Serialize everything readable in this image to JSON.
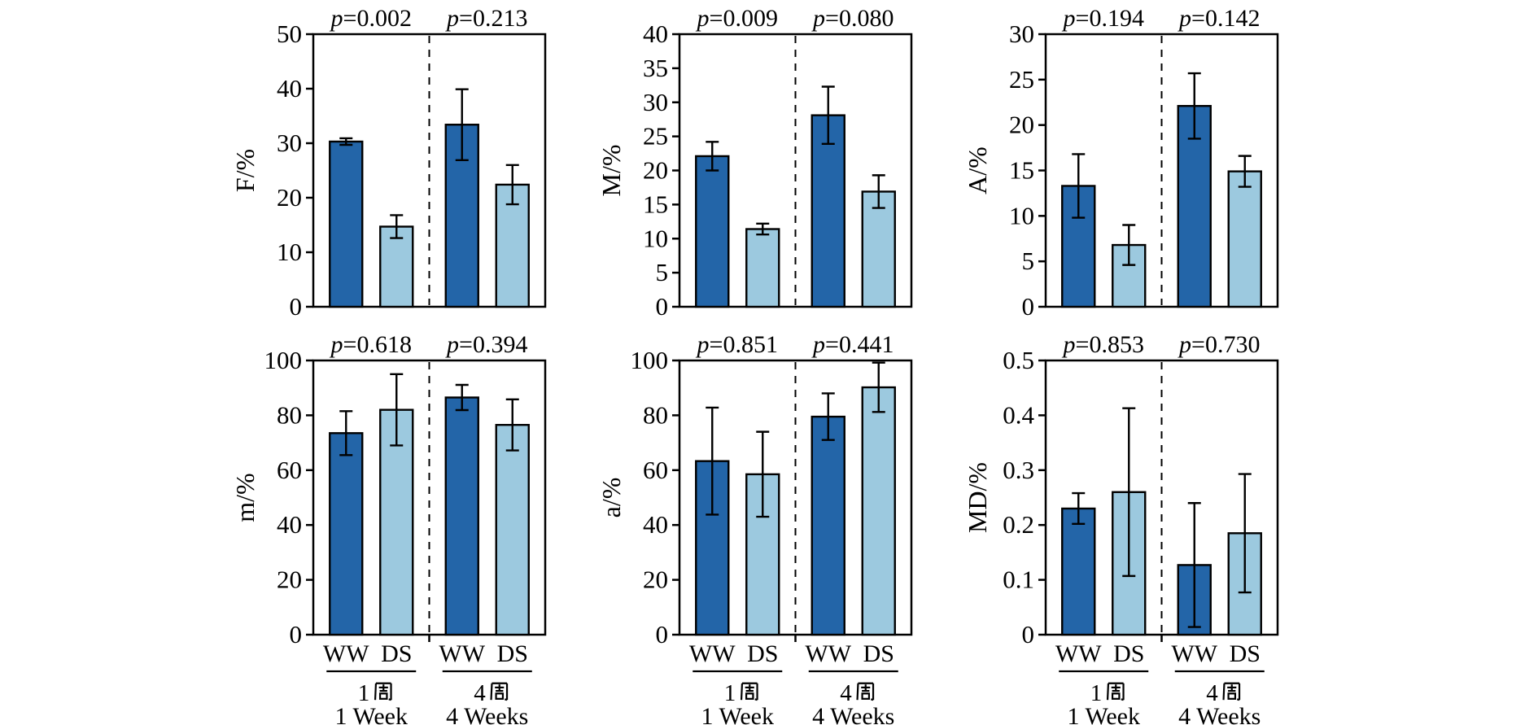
{
  "chart_data": [
    {
      "type": "bar",
      "panel": "F",
      "ylabel": "F/%",
      "ylim": [
        0,
        50
      ],
      "ystep": 10,
      "p_values": [
        "0.002",
        "0.213"
      ],
      "categories": [
        "WW 1 Week",
        "DS 1 Week",
        "WW 4 Weeks",
        "DS 4 Weeks"
      ],
      "series": [
        {
          "name": "WW",
          "values": [
            30.3,
            33.4
          ],
          "errors": [
            0.6,
            6.5
          ]
        },
        {
          "name": "DS",
          "values": [
            14.7,
            22.4
          ],
          "errors": [
            2.1,
            3.6
          ]
        }
      ]
    },
    {
      "type": "bar",
      "panel": "M",
      "ylabel": "M/%",
      "ylim": [
        0,
        40
      ],
      "ystep": 5,
      "p_values": [
        "0.009",
        "0.080"
      ],
      "categories": [
        "WW 1 Week",
        "DS 1 Week",
        "WW 4 Weeks",
        "DS 4 Weeks"
      ],
      "series": [
        {
          "name": "WW",
          "values": [
            22.1,
            28.1
          ],
          "errors": [
            2.1,
            4.2
          ]
        },
        {
          "name": "DS",
          "values": [
            11.4,
            16.9
          ],
          "errors": [
            0.8,
            2.4
          ]
        }
      ]
    },
    {
      "type": "bar",
      "panel": "A",
      "ylabel": "A/%",
      "ylim": [
        0,
        30
      ],
      "ystep": 5,
      "p_values": [
        "0.194",
        "0.142"
      ],
      "categories": [
        "WW 1 Week",
        "DS 1 Week",
        "WW 4 Weeks",
        "DS 4 Weeks"
      ],
      "series": [
        {
          "name": "WW",
          "values": [
            13.3,
            22.1
          ],
          "errors": [
            3.5,
            3.6
          ]
        },
        {
          "name": "DS",
          "values": [
            6.8,
            14.9
          ],
          "errors": [
            2.2,
            1.7
          ]
        }
      ]
    },
    {
      "type": "bar",
      "panel": "m",
      "ylabel": "m/%",
      "ylim": [
        0,
        100
      ],
      "ystep": 20,
      "p_values": [
        "0.618",
        "0.394"
      ],
      "categories": [
        "WW 1 Week",
        "DS 1 Week",
        "WW 4 Weeks",
        "DS 4 Weeks"
      ],
      "series": [
        {
          "name": "WW",
          "values": [
            73.5,
            86.5
          ],
          "errors": [
            8.0,
            4.6
          ]
        },
        {
          "name": "DS",
          "values": [
            82.0,
            76.5
          ],
          "errors": [
            13.0,
            9.3
          ]
        }
      ]
    },
    {
      "type": "bar",
      "panel": "a",
      "ylabel": "a/%",
      "ylim": [
        0,
        100
      ],
      "ystep": 20,
      "p_values": [
        "0.851",
        "0.441"
      ],
      "categories": [
        "WW 1 Week",
        "DS 1 Week",
        "WW 4 Weeks",
        "DS 4 Weeks"
      ],
      "series": [
        {
          "name": "WW",
          "values": [
            63.3,
            79.5
          ],
          "errors": [
            19.5,
            8.5
          ]
        },
        {
          "name": "DS",
          "values": [
            58.5,
            90.2
          ],
          "errors": [
            15.5,
            9.0
          ]
        }
      ]
    },
    {
      "type": "bar",
      "panel": "MD",
      "ylabel": "MD/%",
      "ylim": [
        0,
        0.5
      ],
      "ystep": 0.1,
      "p_values": [
        "0.853",
        "0.730"
      ],
      "categories": [
        "WW 1 Week",
        "DS 1 Week",
        "WW 4 Weeks",
        "DS 4 Weeks"
      ],
      "series": [
        {
          "name": "WW",
          "values": [
            0.23,
            0.127
          ],
          "errors": [
            0.028,
            0.113
          ]
        },
        {
          "name": "DS",
          "values": [
            0.26,
            0.185
          ],
          "errors": [
            0.153,
            0.108
          ]
        }
      ]
    }
  ],
  "shared": {
    "bar_labels": [
      "WW",
      "DS"
    ],
    "groups": [
      {
        "zh": "1周",
        "en": "1 Week"
      },
      {
        "zh": "4周",
        "en": "4 Weeks"
      }
    ],
    "p_prefix": "p",
    "colors": {
      "WW": "#2365a8",
      "DS": "#9cc9df",
      "axis": "#000000",
      "background": "#ffffff"
    },
    "legend": "none",
    "grid": "off"
  }
}
